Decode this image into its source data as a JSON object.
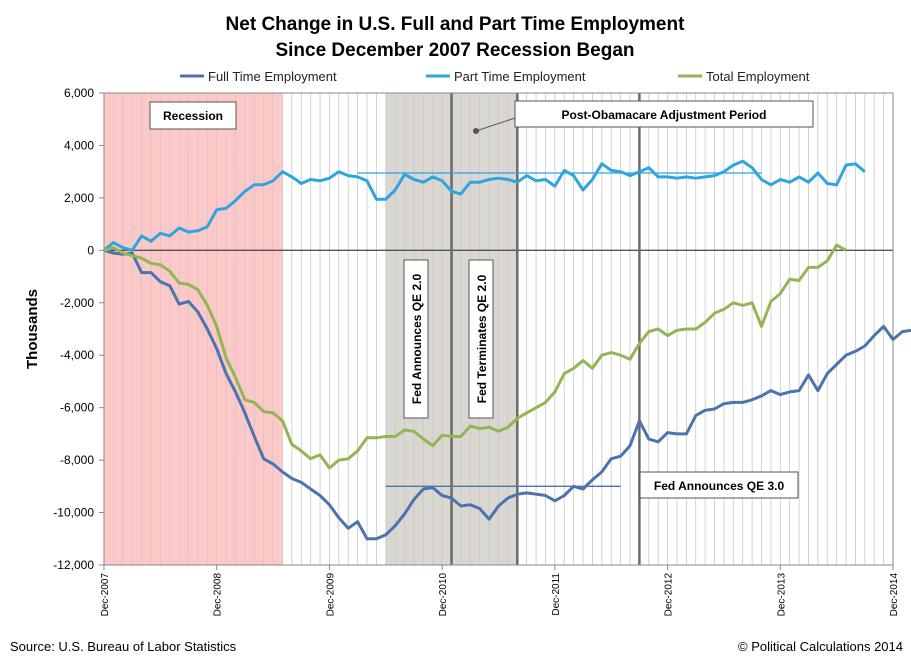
{
  "chart_data": {
    "type": "line",
    "title": [
      "Net Change in U.S. Full and Part Time Employment",
      "Since December 2007 Recession Began"
    ],
    "ylabel": "Thousands",
    "xlabel": "",
    "ylim": [
      -12000,
      6000
    ],
    "yticks": [
      6000,
      4000,
      2000,
      0,
      -2000,
      -4000,
      -6000,
      -8000,
      -10000,
      -12000
    ],
    "ytick_labels": [
      "6,000",
      "4,000",
      "2,000",
      "0",
      "-2,000",
      "-4,000",
      "-6,000",
      "-8,000",
      "-10,000",
      "-12,000"
    ],
    "xticks": [
      "Dec-2007",
      "Dec-2008",
      "Dec-2009",
      "Dec-2010",
      "Dec-2011",
      "Dec-2012",
      "Dec-2013",
      "Dec-2014"
    ],
    "x_range_months": [
      0,
      84
    ],
    "grid": "vertical monthly gridlines",
    "legend_position": "top",
    "series": [
      {
        "name": "Full Time Employment",
        "color": "#4a73b0",
        "values": [
          0,
          -100,
          -150,
          -100,
          -850,
          -850,
          -1200,
          -1350,
          -2050,
          -1950,
          -2350,
          -3000,
          -3750,
          -4700,
          -5400,
          -6200,
          -7100,
          -7950,
          -8150,
          -8450,
          -8700,
          -8850,
          -9100,
          -9350,
          -9700,
          -10200,
          -10600,
          -10350,
          -11000,
          -11000,
          -10850,
          -10500,
          -10050,
          -9500,
          -9100,
          -9050,
          -9350,
          -9450,
          -9750,
          -9700,
          -9850,
          -10250,
          -9750,
          -9450,
          -9300,
          -9250,
          -9300,
          -9350,
          -9550,
          -9350,
          -9000,
          -9100,
          -8750,
          -8450,
          -7950,
          -7850,
          -7450,
          -6500,
          -7200,
          -7300,
          -6950,
          -7000,
          -7000,
          -6300,
          -6100,
          -6050,
          -5850,
          -5800,
          -5800,
          -5700,
          -5550,
          -5350,
          -5500,
          -5400,
          -5350,
          -4750,
          -5350,
          -4700,
          -4350,
          -4000,
          -3850,
          -3650,
          -3250,
          -2900,
          -3400,
          -3100,
          -3050
        ]
      },
      {
        "name": "Part Time Employment",
        "color": "#2fa5e0",
        "values": [
          0,
          300,
          100,
          0,
          550,
          350,
          650,
          550,
          850,
          700,
          750,
          900,
          1550,
          1600,
          1900,
          2250,
          2500,
          2500,
          2650,
          3000,
          2800,
          2550,
          2700,
          2650,
          2750,
          3000,
          2850,
          2800,
          2650,
          1950,
          1950,
          2300,
          2900,
          2700,
          2600,
          2800,
          2650,
          2250,
          2150,
          2600,
          2600,
          2700,
          2750,
          2700,
          2600,
          2850,
          2650,
          2700,
          2450,
          3050,
          2850,
          2300,
          2700,
          3300,
          3050,
          3000,
          2850,
          3000,
          3150,
          2800,
          2800,
          2750,
          2800,
          2750,
          2800,
          2850,
          3000,
          3250,
          3400,
          3150,
          2700,
          2500,
          2700,
          2600,
          2800,
          2600,
          2950,
          2550,
          2500,
          3250,
          3300,
          3000
        ]
      },
      {
        "name": "Total Employment",
        "color": "#93b554",
        "values": [
          0,
          100,
          -100,
          -200,
          -300,
          -500,
          -550,
          -800,
          -1250,
          -1300,
          -1500,
          -2100,
          -2900,
          -4100,
          -4850,
          -5700,
          -5800,
          -6150,
          -6200,
          -6500,
          -7400,
          -7650,
          -7950,
          -7800,
          -8300,
          -8000,
          -7950,
          -7650,
          -7150,
          -7150,
          -7100,
          -7100,
          -6850,
          -6900,
          -7200,
          -7450,
          -7050,
          -7100,
          -7100,
          -6700,
          -6800,
          -6750,
          -6900,
          -6750,
          -6400,
          -6200,
          -6000,
          -5800,
          -5400,
          -4700,
          -4500,
          -4200,
          -4500,
          -4000,
          -3900,
          -4000,
          -4150,
          -3550,
          -3100,
          -3000,
          -3250,
          -3050,
          -3000,
          -3000,
          -2750,
          -2400,
          -2250,
          -2000,
          -2100,
          -2000,
          -2900,
          -1950,
          -1650,
          -1100,
          -1150,
          -650,
          -650,
          -400,
          200,
          0
        ]
      }
    ],
    "reference_lines": [
      {
        "series": "Part Time Employment",
        "value": 2950,
        "x_months": [
          27,
          70
        ]
      },
      {
        "series": "Full Time Employment",
        "value": -9000,
        "x_months": [
          30,
          55
        ]
      }
    ],
    "shaded_periods": [
      {
        "label": "Recession",
        "x_months": [
          0,
          19
        ],
        "color": "#ffc8c8"
      },
      {
        "label": "Post-Obamacare Adjustment Period",
        "x_months": [
          30,
          44
        ],
        "color": "#d9d7d0"
      }
    ],
    "event_lines": [
      {
        "label": "Fed Announces QE 2.0",
        "x_month": 37
      },
      {
        "label": "Fed Terminates QE 2.0",
        "x_month": 44
      },
      {
        "label": "Fed Announces QE 3.0",
        "x_month": 57
      }
    ]
  },
  "footer": {
    "source": "Source: U.S. Bureau of Labor Statistics",
    "credit": "© Political Calculations 2014"
  }
}
